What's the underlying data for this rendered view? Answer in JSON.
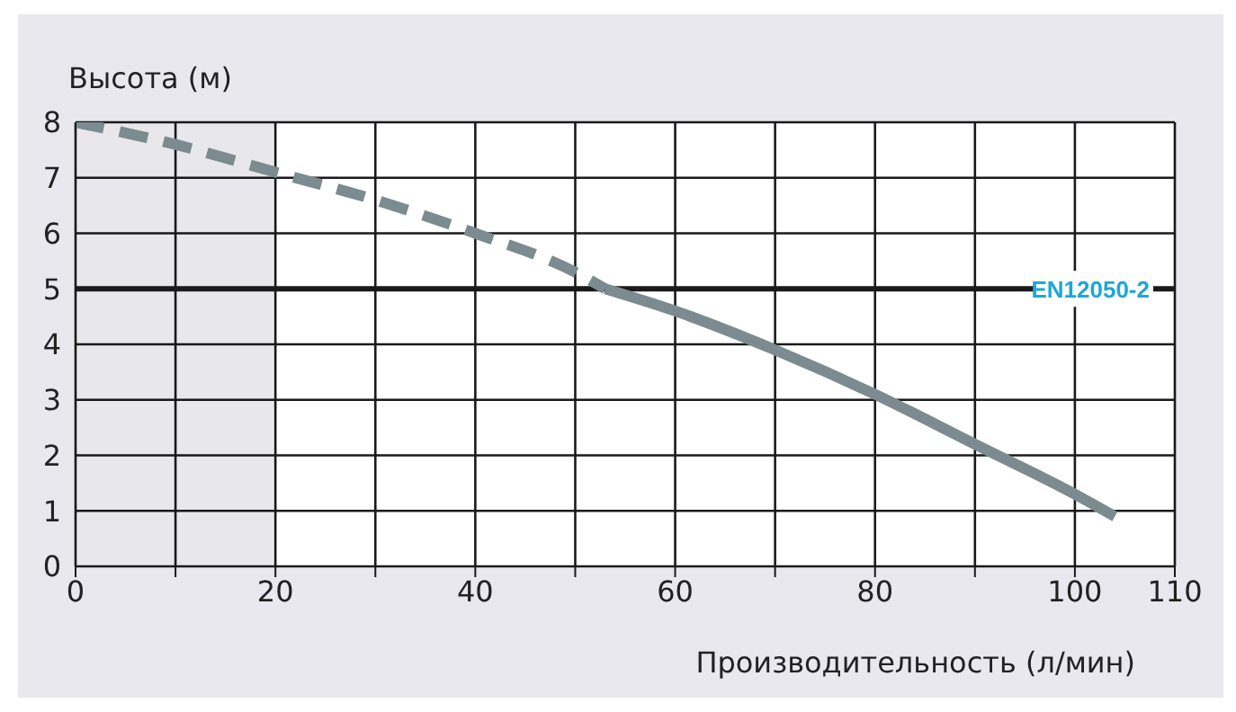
{
  "chart_data": {
    "type": "line",
    "xlabel": "Производительность (л/мин)",
    "ylabel": "Высота (м)",
    "xlim": [
      0,
      110
    ],
    "xticks": [
      0,
      {
        "value": 10,
        "label": null
      },
      20,
      {
        "value": 30,
        "label": null
      },
      40,
      {
        "value": 50,
        "label": null
      },
      60,
      {
        "value": 70,
        "label": null
      },
      80,
      {
        "value": 90,
        "label": null
      },
      100,
      110
    ],
    "ylim": [
      0,
      8
    ],
    "yticks": [
      0,
      1,
      2,
      3,
      4,
      5,
      6,
      7,
      8
    ],
    "grid": true,
    "series": [
      {
        "color": "#7b8b8f",
        "line_style": "dashed",
        "x": [
          0,
          10,
          20,
          30,
          40,
          50,
          53
        ],
        "values": [
          8,
          7.6,
          7.1,
          6.6,
          6.0,
          5.3,
          5.0
        ]
      },
      {
        "color": "#7b8b8f",
        "line_style": "solid",
        "x": [
          53,
          60,
          70,
          80,
          90,
          100,
          104
        ],
        "values": [
          5.0,
          4.6,
          3.9,
          3.1,
          2.2,
          1.3,
          0.9
        ]
      }
    ],
    "ref_lines": [
      {
        "axis": "y",
        "value": 5,
        "label": "EN12050-2",
        "color": "#1a1a1a"
      }
    ],
    "bands": [
      {
        "axis": "x",
        "from": 0,
        "to": 20,
        "color": "#e8e8ec"
      }
    ]
  }
}
